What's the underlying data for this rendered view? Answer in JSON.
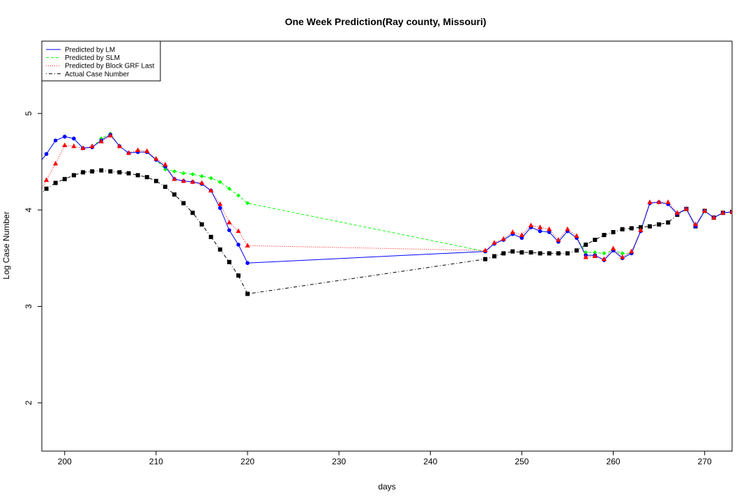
{
  "chart_data": {
    "type": "line",
    "title": "One Week Prediction(Ray county, Missouri)",
    "xlabel": "days",
    "ylabel": "Log Case Number",
    "xlim": [
      197.5,
      273
    ],
    "ylim": [
      1.5,
      5.75
    ],
    "x_ticks": [
      200,
      210,
      220,
      230,
      240,
      250,
      260,
      270
    ],
    "y_ticks": [
      2,
      3,
      4,
      5
    ],
    "legend_position": "top-left",
    "x": [
      197,
      198,
      199,
      200,
      201,
      202,
      203,
      204,
      205,
      206,
      207,
      208,
      209,
      210,
      211,
      212,
      213,
      214,
      215,
      216,
      217,
      218,
      219,
      220,
      246,
      247,
      248,
      249,
      250,
      251,
      252,
      253,
      254,
      255,
      256,
      257,
      258,
      259,
      260,
      261,
      262,
      263,
      264,
      265,
      266,
      267,
      268,
      269,
      270,
      271,
      272,
      273
    ],
    "series": [
      {
        "name": "Predicted by LM",
        "color": "#0000ff",
        "line_style": "solid",
        "marker": "circle",
        "values": [
          4.46,
          4.58,
          4.72,
          4.76,
          4.74,
          4.64,
          4.65,
          4.72,
          4.78,
          4.66,
          4.59,
          4.6,
          4.6,
          4.52,
          4.45,
          4.32,
          4.3,
          4.29,
          4.27,
          4.2,
          4.02,
          3.79,
          3.64,
          3.45,
          3.57,
          3.65,
          3.69,
          3.75,
          3.71,
          3.82,
          3.78,
          3.77,
          3.67,
          3.78,
          3.71,
          3.53,
          3.53,
          3.48,
          3.58,
          3.5,
          3.55,
          3.78,
          4.07,
          4.08,
          4.06,
          3.96,
          4.01,
          3.83,
          3.99,
          3.92,
          3.97,
          3.98
        ]
      },
      {
        "name": "Predicted by SLM",
        "color": "#00ff00",
        "line_style": "dashed",
        "marker": "diamond",
        "values": [
          4.46,
          4.58,
          4.72,
          4.76,
          4.74,
          4.64,
          4.65,
          4.74,
          4.79,
          4.66,
          4.59,
          4.6,
          4.6,
          4.52,
          4.42,
          4.4,
          4.38,
          4.37,
          4.35,
          4.33,
          4.29,
          4.22,
          4.15,
          4.07,
          3.57,
          3.65,
          3.69,
          3.75,
          3.71,
          3.82,
          3.78,
          3.77,
          3.67,
          3.78,
          3.71,
          3.56,
          3.56,
          3.55,
          3.58,
          3.55,
          3.55,
          3.78,
          4.07,
          4.08,
          4.06,
          3.96,
          4.01,
          3.83,
          3.99,
          3.92,
          3.97,
          3.98
        ]
      },
      {
        "name": "Predicted by Block GRF Last",
        "color": "#ff0000",
        "line_style": "dotted",
        "marker": "triangle",
        "values": [
          4.13,
          4.31,
          4.48,
          4.67,
          4.66,
          4.64,
          4.66,
          4.71,
          4.77,
          4.66,
          4.59,
          4.62,
          4.61,
          4.53,
          4.47,
          4.32,
          4.3,
          4.29,
          4.28,
          4.2,
          4.06,
          3.87,
          3.78,
          3.63,
          3.58,
          3.66,
          3.7,
          3.77,
          3.74,
          3.84,
          3.82,
          3.8,
          3.69,
          3.8,
          3.73,
          3.51,
          3.52,
          3.49,
          3.6,
          3.51,
          3.57,
          3.79,
          4.08,
          4.08,
          4.08,
          3.97,
          4.01,
          3.85,
          3.99,
          3.92,
          3.97,
          3.98
        ]
      },
      {
        "name": "Actual Case Number",
        "color": "#000000",
        "line_style": "dotdash",
        "marker": "square",
        "values": [
          4.13,
          4.22,
          4.28,
          4.32,
          4.36,
          4.39,
          4.4,
          4.41,
          4.4,
          4.39,
          4.38,
          4.36,
          4.34,
          4.3,
          4.24,
          4.16,
          4.07,
          3.97,
          3.85,
          3.72,
          3.59,
          3.46,
          3.32,
          3.13,
          3.49,
          3.52,
          3.55,
          3.57,
          3.56,
          3.56,
          3.55,
          3.55,
          3.55,
          3.55,
          3.58,
          3.64,
          3.69,
          3.74,
          3.77,
          3.8,
          3.81,
          3.82,
          3.83,
          3.85,
          3.87,
          3.95,
          4.01,
          3.83,
          3.99,
          3.92,
          3.97,
          3.98
        ]
      }
    ]
  }
}
